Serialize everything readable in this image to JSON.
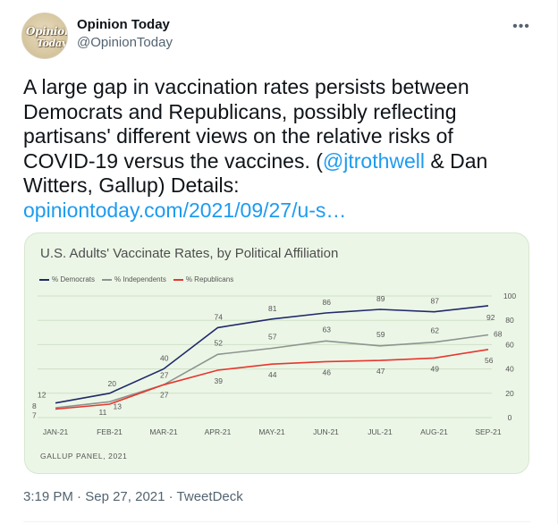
{
  "author": {
    "name": "Opinion Today",
    "handle": "@OpinionToday",
    "avatar_text_line1": "Opinion",
    "avatar_text_line2": "Today"
  },
  "more_icon": "three-dots-icon",
  "tweet": {
    "text_part1": "A large gap in vaccination rates persists between Democrats and Republicans, possibly reflecting partisans' different views on the relative risks of COVID-19 versus the vaccines. (",
    "mention": "@jtrothwell",
    "text_part2": " & Dan Witters, Gallup) Details: ",
    "link": "opiniontoday.com/2021/09/27/u-s…"
  },
  "meta": {
    "time": "3:19 PM",
    "date": "Sep 27, 2021",
    "client": "TweetDeck",
    "separator": "·"
  },
  "colors": {
    "link": "#1d9bf0",
    "card_bg": "#ecf6e7"
  },
  "chart_data": {
    "type": "line",
    "title": "U.S. Adults' Vaccinate Rates, by Political Affiliation",
    "source": "GALLUP PANEL, 2021",
    "categories": [
      "JAN-21",
      "FEB-21",
      "MAR-21",
      "APR-21",
      "MAY-21",
      "JUN-21",
      "JUL-21",
      "AUG-21",
      "SEP-21"
    ],
    "ylim": [
      0,
      100
    ],
    "yticks": [
      0,
      20,
      40,
      60,
      80,
      100
    ],
    "y_axis_side": "right",
    "legend_position": "top-left",
    "grid": true,
    "series": [
      {
        "name": "% Democrats",
        "color": "#1f2a6b",
        "values": [
          12,
          20,
          40,
          74,
          81,
          86,
          89,
          87,
          92
        ],
        "labels": [
          "12",
          "20",
          "40",
          "74",
          "81",
          "86",
          "89",
          "87",
          "92"
        ]
      },
      {
        "name": "% Independents",
        "color": "#8c948f",
        "values": [
          8,
          13,
          27,
          52,
          57,
          63,
          59,
          62,
          68
        ],
        "labels": [
          "8",
          "",
          "",
          "52",
          "57",
          "63",
          "59",
          "62",
          "68"
        ]
      },
      {
        "name": "% Republicans",
        "color": "#e8362d",
        "values": [
          7,
          11,
          27,
          39,
          44,
          46,
          47,
          49,
          56
        ],
        "labels": [
          "7",
          "11",
          "27",
          "39",
          "44",
          "46",
          "47",
          "49",
          "56"
        ]
      }
    ],
    "extra_labels": [
      {
        "series": 1,
        "index": 1,
        "text": "13"
      },
      {
        "series": 2,
        "index": 2,
        "text": "27",
        "dup": true
      }
    ]
  }
}
